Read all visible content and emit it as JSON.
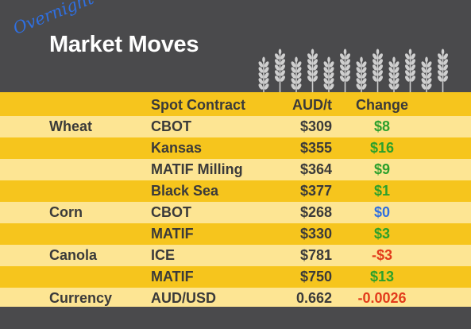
{
  "header": {
    "script_word": "Overnight",
    "title": "Market Moves"
  },
  "table": {
    "columns": {
      "grain": "",
      "contract": "Spot Contract",
      "price": "AUD/t",
      "change": "Change"
    },
    "rows": [
      {
        "grain": "Wheat",
        "contract": "CBOT",
        "price": "$309",
        "change": "$8",
        "trend": "up"
      },
      {
        "grain": "",
        "contract": "Kansas",
        "price": "$355",
        "change": "$16",
        "trend": "up"
      },
      {
        "grain": "",
        "contract": "MATIF Milling",
        "price": "$364",
        "change": "$9",
        "trend": "up"
      },
      {
        "grain": "",
        "contract": "Black Sea",
        "price": "$377",
        "change": "$1",
        "trend": "up"
      },
      {
        "grain": "Corn",
        "contract": "CBOT",
        "price": "$268",
        "change": "$0",
        "trend": "flat"
      },
      {
        "grain": "",
        "contract": "MATIF",
        "price": "$330",
        "change": "$3",
        "trend": "up"
      },
      {
        "grain": "Canola",
        "contract": "ICE",
        "price": "$781",
        "change": "-$3",
        "trend": "down"
      },
      {
        "grain": "",
        "contract": "MATIF",
        "price": "$750",
        "change": "$13",
        "trend": "up"
      },
      {
        "grain": "Currency",
        "contract": "AUD/USD",
        "price": "0.662",
        "change": "-0.0026",
        "trend": "down"
      }
    ]
  },
  "colors": {
    "background": "#4a4a4c",
    "band_dark": "#f6c51d",
    "band_light": "#fde593",
    "positive": "#2ca02c",
    "flat": "#2f6fe0",
    "negative": "#e23b1b",
    "wheat_icon": "#cfcfcf"
  },
  "icons": [
    "wheat-stalks-icon"
  ]
}
